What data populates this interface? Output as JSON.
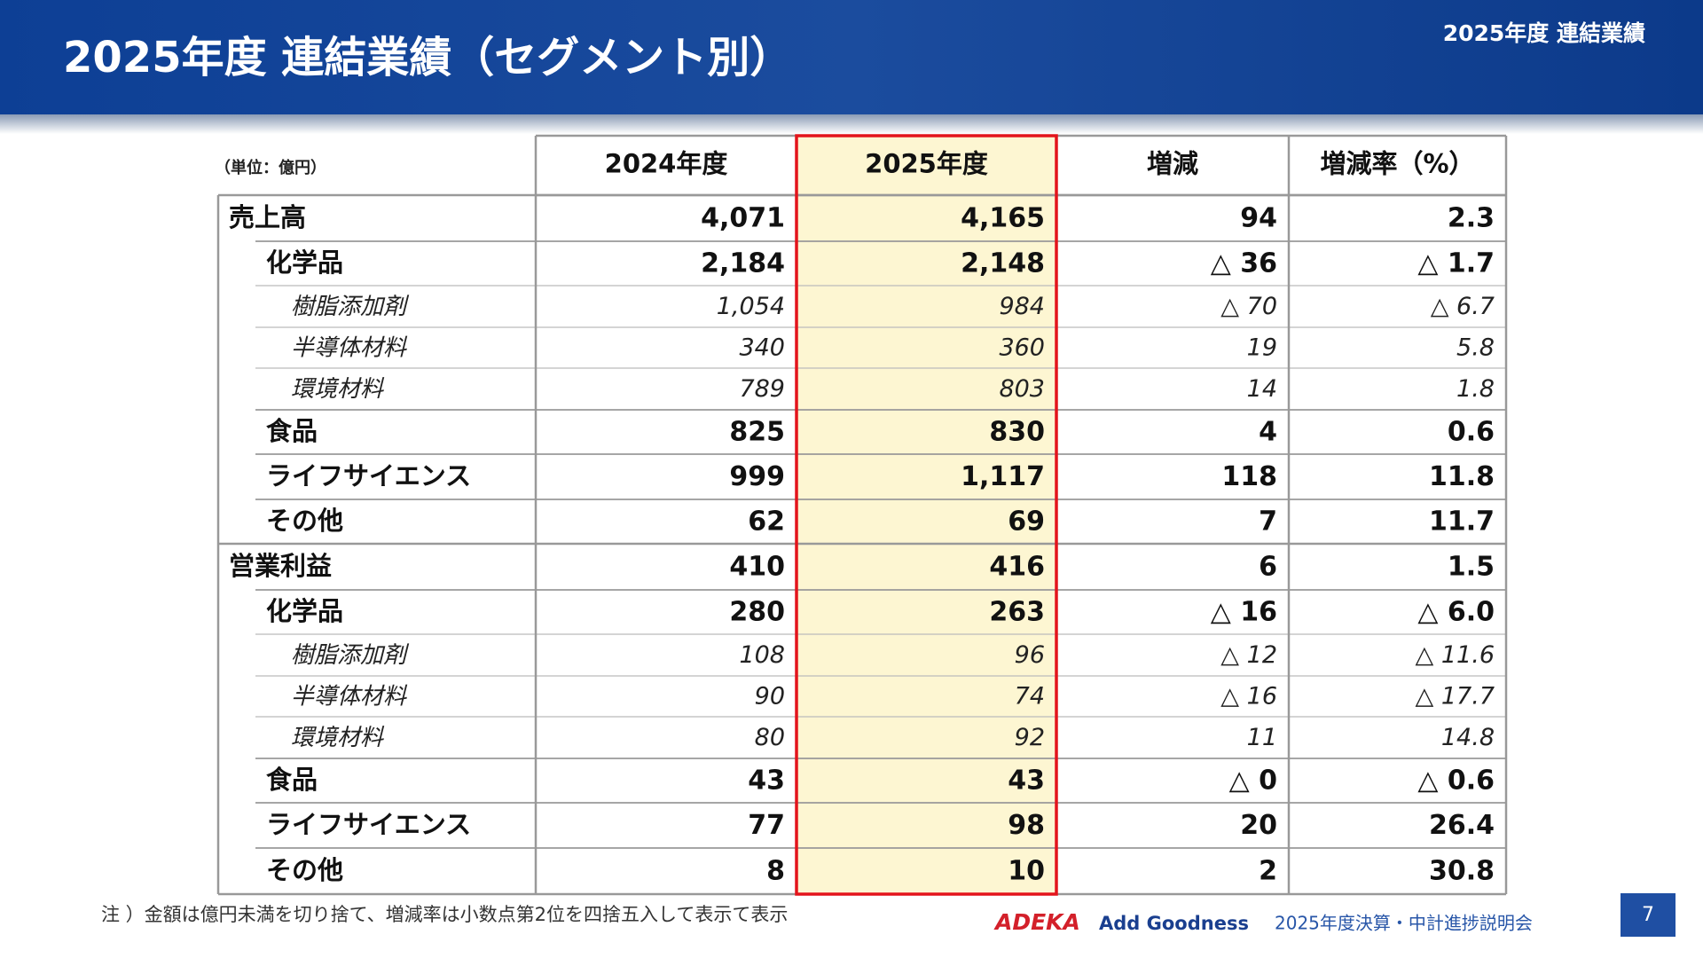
{
  "header": {
    "title": "2025年度 連結業績（セグメント別）",
    "section": "2025年度 連結業績"
  },
  "table": {
    "unit": "（単位：億円）",
    "columns": [
      "2024年度",
      "2025年度",
      "増減",
      "増減率（%）"
    ],
    "rows": [
      {
        "label": "売上高",
        "values": [
          "4,071",
          "4,165",
          "94",
          "2.3"
        ]
      },
      {
        "label": "化学品",
        "values": [
          "2,184",
          "2,148",
          "△ 36",
          "△ 1.7"
        ]
      },
      {
        "label": "樹脂添加剤",
        "values": [
          "1,054",
          "984",
          "△ 70",
          "△ 6.7"
        ]
      },
      {
        "label": "半導体材料",
        "values": [
          "340",
          "360",
          "19",
          "5.8"
        ]
      },
      {
        "label": "環境材料",
        "values": [
          "789",
          "803",
          "14",
          "1.8"
        ]
      },
      {
        "label": "食品",
        "values": [
          "825",
          "830",
          "4",
          "0.6"
        ]
      },
      {
        "label": "ライフサイエンス",
        "values": [
          "999",
          "1,117",
          "118",
          "11.8"
        ]
      },
      {
        "label": "その他",
        "values": [
          "62",
          "69",
          "7",
          "11.7"
        ]
      },
      {
        "label": "営業利益",
        "values": [
          "410",
          "416",
          "6",
          "1.5"
        ]
      },
      {
        "label": "化学品",
        "values": [
          "280",
          "263",
          "△ 16",
          "△ 6.0"
        ]
      },
      {
        "label": "樹脂添加剤",
        "values": [
          "108",
          "96",
          "△ 12",
          "△ 11.6"
        ]
      },
      {
        "label": "半導体材料",
        "values": [
          "90",
          "74",
          "△ 16",
          "△ 17.7"
        ]
      },
      {
        "label": "環境材料",
        "values": [
          "80",
          "92",
          "11",
          "14.8"
        ]
      },
      {
        "label": "食品",
        "values": [
          "43",
          "43",
          "△ 0",
          "△ 0.6"
        ]
      },
      {
        "label": "ライフサイエンス",
        "values": [
          "77",
          "98",
          "20",
          "26.4"
        ]
      },
      {
        "label": "その他",
        "values": [
          "8",
          "10",
          "2",
          "30.8"
        ]
      }
    ]
  },
  "footer": {
    "note": "注 ）金額は億円未満を切り捨て、増減率は小数点第2位を四捨五入して表示て表示",
    "brand": "ADEKA",
    "slogan": "Add Goodness",
    "event": "2025年度決算・中計進捗説明会",
    "page": "7"
  }
}
